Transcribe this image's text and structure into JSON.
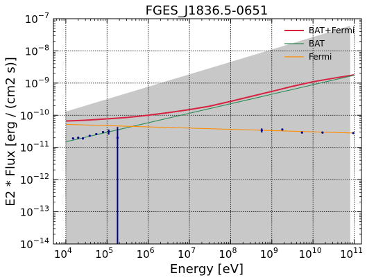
{
  "chart_data": {
    "type": "line",
    "title": "FGES_J1836.5-0651",
    "xlabel": "Energy [eV]",
    "ylabel": "E2 * Flux [erg / (cm2 s)]",
    "xscale": "log",
    "yscale": "log",
    "xlim": [
      5000,
      150000000000
    ],
    "ylim": [
      1e-14,
      1e-07
    ],
    "grid": true,
    "legend_position": "top-right",
    "x_ticks": [
      {
        "value": 10000,
        "base": "10",
        "exp": "4"
      },
      {
        "value": 100000,
        "base": "10",
        "exp": "5"
      },
      {
        "value": 1000000,
        "base": "10",
        "exp": "6"
      },
      {
        "value": 10000000,
        "base": "10",
        "exp": "7"
      },
      {
        "value": 100000000,
        "base": "10",
        "exp": "8"
      },
      {
        "value": 1000000000,
        "base": "10",
        "exp": "9"
      },
      {
        "value": 10000000000,
        "base": "10",
        "exp": "10"
      },
      {
        "value": 100000000000,
        "base": "10",
        "exp": "11"
      }
    ],
    "y_ticks": [
      {
        "value": 1e-14,
        "base": "10",
        "exp": "−14"
      },
      {
        "value": 1e-13,
        "base": "10",
        "exp": "−13"
      },
      {
        "value": 1e-12,
        "base": "10",
        "exp": "−12"
      },
      {
        "value": 1e-11,
        "base": "10",
        "exp": "−11"
      },
      {
        "value": 1e-10,
        "base": "10",
        "exp": "−10"
      },
      {
        "value": 1e-09,
        "base": "10",
        "exp": "−9"
      },
      {
        "value": 1e-08,
        "base": "10",
        "exp": "−8"
      },
      {
        "value": 1e-07,
        "base": "10",
        "exp": "−7"
      }
    ],
    "uncertainty_band": {
      "color": "#c8c8c8",
      "upper": [
        [
          10000,
          1.3e-10
        ],
        [
          80000000000,
          6e-08
        ]
      ],
      "lower": [
        [
          10000,
          1e-14
        ],
        [
          80000000000,
          1e-14
        ]
      ]
    },
    "series": [
      {
        "name": "BAT+Fermi",
        "color": "#d6213f",
        "x": [
          10000,
          30000,
          100000,
          300000,
          1000000,
          3000000,
          10000000,
          30000000,
          100000000,
          300000000,
          1000000000,
          3000000000,
          10000000000,
          30000000000,
          100000000000
        ],
        "y": [
          6.6e-11,
          7e-11,
          7.7e-11,
          8.5e-11,
          1e-10,
          1.2e-10,
          1.5e-10,
          1.9e-10,
          2.7e-10,
          3.8e-10,
          5.5e-10,
          7.8e-10,
          1.1e-09,
          1.4e-09,
          1.8e-09
        ]
      },
      {
        "name": "BAT",
        "color": "#2e8b57",
        "x": [
          10000,
          100000000000
        ],
        "y": [
          1.5e-11,
          1.75e-09
        ]
      },
      {
        "name": "Fermi",
        "color": "#ff8c00",
        "x": [
          10000,
          100000000000
        ],
        "y": [
          5.2e-11,
          2.8e-11
        ]
      }
    ],
    "points": {
      "color": "#00008b",
      "data": [
        {
          "x": 15000,
          "y": 1.9e-11
        },
        {
          "x": 20000,
          "y": 2e-11
        },
        {
          "x": 26000,
          "y": 1.9e-11
        },
        {
          "x": 38000,
          "y": 2.3e-11
        },
        {
          "x": 55000,
          "y": 2.6e-11
        },
        {
          "x": 80000,
          "y": 3e-11
        },
        {
          "x": 110000,
          "y": 3.1e-11,
          "ylo": 2.5e-11,
          "yhi": 3.6e-11
        },
        {
          "x": 180000,
          "y": 2e-11,
          "ylo": 1e-14,
          "yhi": 4.3e-11
        },
        {
          "x": 570000000,
          "y": 3.4e-11,
          "ylo": 2.9e-11,
          "yhi": 3.9e-11
        },
        {
          "x": 1800000000,
          "y": 3.6e-11
        },
        {
          "x": 5400000000,
          "y": 2.9e-11
        },
        {
          "x": 17000000000,
          "y": 2.9e-11
        },
        {
          "x": 95000000000,
          "y": 2.8e-11
        }
      ]
    }
  }
}
